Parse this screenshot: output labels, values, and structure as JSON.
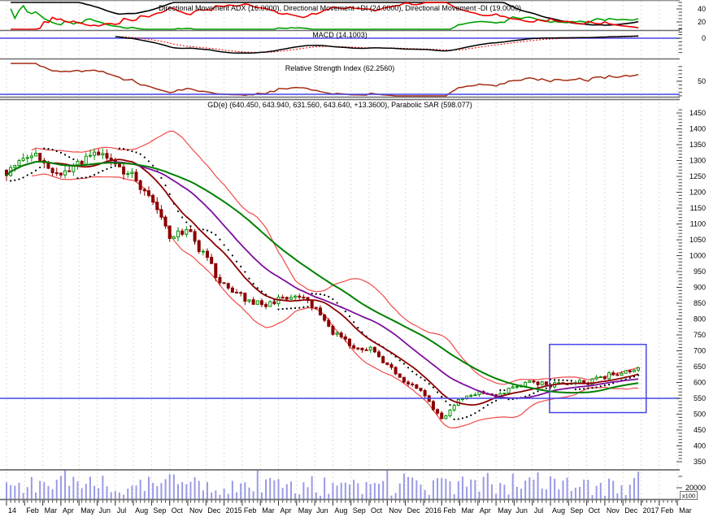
{
  "panel_titles": {
    "dmi": "Directional Movement ADX (16.0000), Directional Movement +DI (24.0000), Directional Movement -DI (19.0000)",
    "macd": "MACD (14.1003)",
    "rsi": "Relative Strength Index (62.2560)",
    "price": "GD(e) (640.450, 643.940, 631.560, 643.640, +13.3600), Parabolic SAR (598.077)"
  },
  "axes": {
    "dmi_ticks": [
      40,
      20
    ],
    "macd_ticks": [
      0
    ],
    "rsi_ticks": [
      50
    ],
    "price_ticks": [
      1450,
      1400,
      1350,
      1300,
      1250,
      1200,
      1150,
      1100,
      1050,
      1000,
      950,
      900,
      850,
      800,
      750,
      700,
      650,
      600,
      550,
      500,
      450,
      400,
      350
    ],
    "volume_tick": "20000",
    "volume_multiplier": "x100",
    "months": [
      "14",
      "Feb",
      "Mar",
      "Apr",
      "May",
      "Jun",
      "Jul",
      "Aug",
      "Sep",
      "Oct",
      "Nov",
      "Dec",
      "2015",
      "Feb",
      "Mar",
      "Apr",
      "May",
      "Jun",
      "Aug",
      "Sep",
      "Oct",
      "Nov",
      "Dec",
      "2016",
      "Feb",
      "Mar",
      "Apr",
      "May",
      "Jun",
      "Jul",
      "Aug",
      "Sep",
      "Oct",
      "Nov",
      "Dec",
      "2017",
      "Feb",
      "Mar"
    ]
  },
  "colors": {
    "up_candle": "#009000",
    "down_candle": "#8b0000",
    "bollinger": "#f24a4a",
    "ma_slow_green": "#008000",
    "ma_mid_purple": "#7d0f9e",
    "ma_fast_darkred": "#8b0000",
    "sar_dots": "#000000",
    "support_blue": "#4646e8",
    "volume_bar": "#9a9ae6",
    "dmi_adx": "#000000",
    "dmi_plus": "#00a000",
    "dmi_minus": "#ee0000",
    "macd_line": "#000000",
    "macd_signal": "#ee0000",
    "rsi_line": "#a32d14",
    "separator": "#6e6e6e",
    "gridline": "#dcdcdc"
  },
  "chart_data": {
    "type": "candlestick",
    "symbol": "GD(e)",
    "title": "GD(e) (640.450, 643.940, 631.560, 643.640, +13.3600), Parabolic SAR (598.077)",
    "last_values": {
      "open": 640.45,
      "high": 643.94,
      "low": 631.56,
      "close": 643.64,
      "change": "+13.3600",
      "parabolic_sar": 598.077,
      "macd": 14.1003,
      "rsi": 62.256,
      "adx": 16.0,
      "plus_di": 24.0,
      "minus_di": 19.0
    },
    "price_axis": {
      "min": 350,
      "max": 1450,
      "step": 50
    },
    "x_axis_months": [
      "14",
      "Feb",
      "Mar",
      "Apr",
      "May",
      "Jun",
      "Jul",
      "Aug",
      "Sep",
      "Oct",
      "Nov",
      "Dec",
      "2015",
      "Feb",
      "Mar",
      "Apr",
      "May",
      "Jun",
      "Aug",
      "Sep",
      "Oct",
      "Nov",
      "Dec",
      "2016",
      "Feb",
      "Mar",
      "Apr",
      "May",
      "Jun",
      "Jul",
      "Aug",
      "Sep",
      "Oct",
      "Nov",
      "Dec",
      "2017",
      "Feb",
      "Mar"
    ],
    "monthly_close_anchors": [
      [
        0,
        1270
      ],
      [
        1,
        1320
      ],
      [
        2,
        1300
      ],
      [
        3,
        1240
      ],
      [
        4,
        1290
      ],
      [
        5,
        1320
      ],
      [
        6,
        1290
      ],
      [
        7,
        1250
      ],
      [
        8,
        1180
      ],
      [
        9,
        1060
      ],
      [
        10,
        1080
      ],
      [
        11,
        990
      ],
      [
        12,
        900
      ],
      [
        13,
        870
      ],
      [
        14,
        845
      ],
      [
        15,
        860
      ],
      [
        16,
        875
      ],
      [
        17,
        830
      ],
      [
        18,
        760
      ],
      [
        19,
        720
      ],
      [
        20,
        705
      ],
      [
        21,
        660
      ],
      [
        22,
        600
      ],
      [
        23,
        565
      ],
      [
        24,
        480
      ],
      [
        25,
        545
      ],
      [
        26,
        570
      ],
      [
        27,
        555
      ],
      [
        28,
        585
      ],
      [
        29,
        605
      ],
      [
        30,
        590
      ],
      [
        31,
        600
      ],
      [
        32,
        598
      ],
      [
        33,
        618
      ],
      [
        34,
        635
      ],
      [
        35.2,
        643.64
      ]
    ],
    "support_line_price": 550,
    "highlight_box": {
      "month_from": 29.95,
      "month_to": 35.28,
      "price_from": 505,
      "price_to": 720
    },
    "overlays": [
      "Bollinger Bands (red)",
      "MA slow (green)",
      "MA mid (purple)",
      "MA fast (dark red)",
      "Parabolic SAR (black dots)"
    ],
    "indicator_panels": [
      "Directional Movement (ADX, +DI, -DI)",
      "MACD with signal",
      "RSI",
      "Volume (x100)"
    ]
  }
}
